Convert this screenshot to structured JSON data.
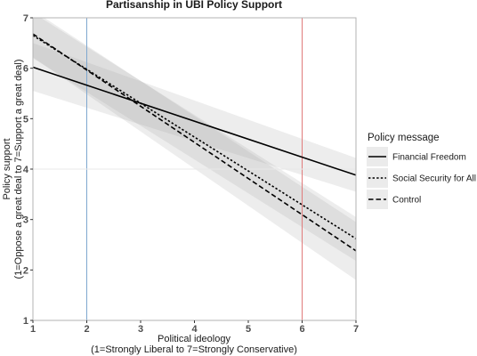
{
  "chart_data": {
    "type": "line",
    "title": "Partisanship in UBI Policy Support",
    "xlabel_lines": [
      "Political ideology",
      "(1=Strongly Liberal to 7=Strongly Conservative)"
    ],
    "ylabel_lines": [
      "Policy support",
      "(1=Oppose a great deal to 7=Support a great deal)"
    ],
    "xlim": [
      1,
      7
    ],
    "ylim": [
      1,
      7
    ],
    "x_ticks": [
      "1",
      "2",
      "3",
      "4",
      "5",
      "6",
      "7"
    ],
    "y_ticks": [
      "1",
      "2",
      "3",
      "4",
      "5",
      "6",
      "7"
    ],
    "reference_lines": [
      {
        "axis": "x",
        "value": 2,
        "color": "#7fa7cf"
      },
      {
        "axis": "x",
        "value": 6,
        "color": "#e07b7b"
      },
      {
        "axis": "y",
        "value": 4,
        "color": "#e8e8e8"
      }
    ],
    "legend_title": "Policy message",
    "legend_position": "right",
    "series": [
      {
        "name": "Financial Freedom",
        "dash": "solid",
        "x": [
          1,
          7
        ],
        "y": [
          6.02,
          3.88
        ],
        "ci_lower": [
          5.55,
          3.55
        ],
        "ci_upper": [
          6.5,
          4.22
        ]
      },
      {
        "name": "Social Security for All",
        "dash": "dotted",
        "x": [
          1,
          7
        ],
        "y": [
          6.65,
          2.62
        ],
        "ci_lower": [
          6.2,
          2.18
        ],
        "ci_upper": [
          7.1,
          3.05
        ]
      },
      {
        "name": "Control",
        "dash": "dashed",
        "x": [
          1,
          7
        ],
        "y": [
          6.68,
          2.38
        ],
        "ci_lower": [
          6.22,
          1.8
        ],
        "ci_upper": [
          7.15,
          2.95
        ]
      }
    ]
  }
}
